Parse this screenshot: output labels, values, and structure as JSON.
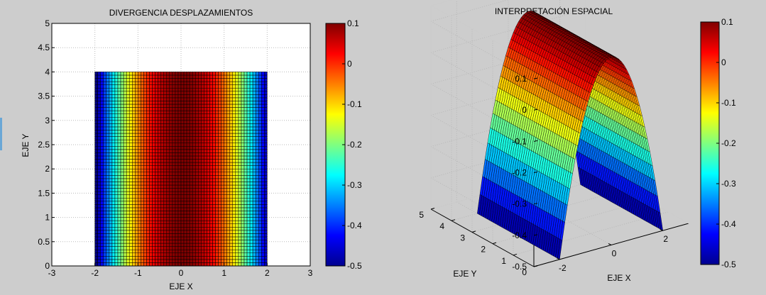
{
  "chart_data": [
    {
      "type": "heatmap",
      "title": "DIVERGENCIA DESPLAZAMIENTOS",
      "xlabel": "EJE X",
      "ylabel": "EJE Y",
      "xlim": [
        -3,
        3
      ],
      "ylim": [
        0,
        5
      ],
      "xticks": [
        -3,
        -2,
        -1,
        0,
        1,
        2,
        3
      ],
      "yticks": [
        0,
        0.5,
        1,
        1.5,
        2,
        2.5,
        3,
        3.5,
        4,
        4.5,
        5
      ],
      "x_range": [
        -2,
        2
      ],
      "y_range": [
        0,
        4
      ],
      "function": "z = 0.1 - 0.15 * x^2",
      "z_min": -0.5,
      "z_max": 0.1,
      "grid": true,
      "colormap": "jet",
      "colorbar": {
        "ticks": [
          0.1,
          0,
          -0.1,
          -0.2,
          -0.3,
          -0.4,
          -0.5
        ],
        "range": [
          -0.5,
          0.1
        ]
      }
    },
    {
      "type": "surface",
      "title": "INTERPRETACIÓN ESPACIAL",
      "xlabel": "EJE X",
      "ylabel": "EJE Y",
      "xticks": [
        -2,
        0,
        2
      ],
      "yticks": [
        0,
        1,
        2,
        3,
        4,
        5
      ],
      "zticks": [
        0.1,
        0,
        -0.1,
        -0.2,
        -0.3,
        -0.4,
        -0.5
      ],
      "x_range": [
        -2,
        2
      ],
      "y_range": [
        0,
        4
      ],
      "zlim": [
        -0.5,
        0.1
      ],
      "function": "z = 0.1 - 0.15 * x^2",
      "grid": true,
      "colormap": "jet",
      "colorbar": {
        "ticks": [
          0.1,
          0,
          -0.1,
          -0.2,
          -0.3,
          -0.4,
          -0.5
        ],
        "range": [
          -0.5,
          0.1
        ]
      }
    }
  ]
}
